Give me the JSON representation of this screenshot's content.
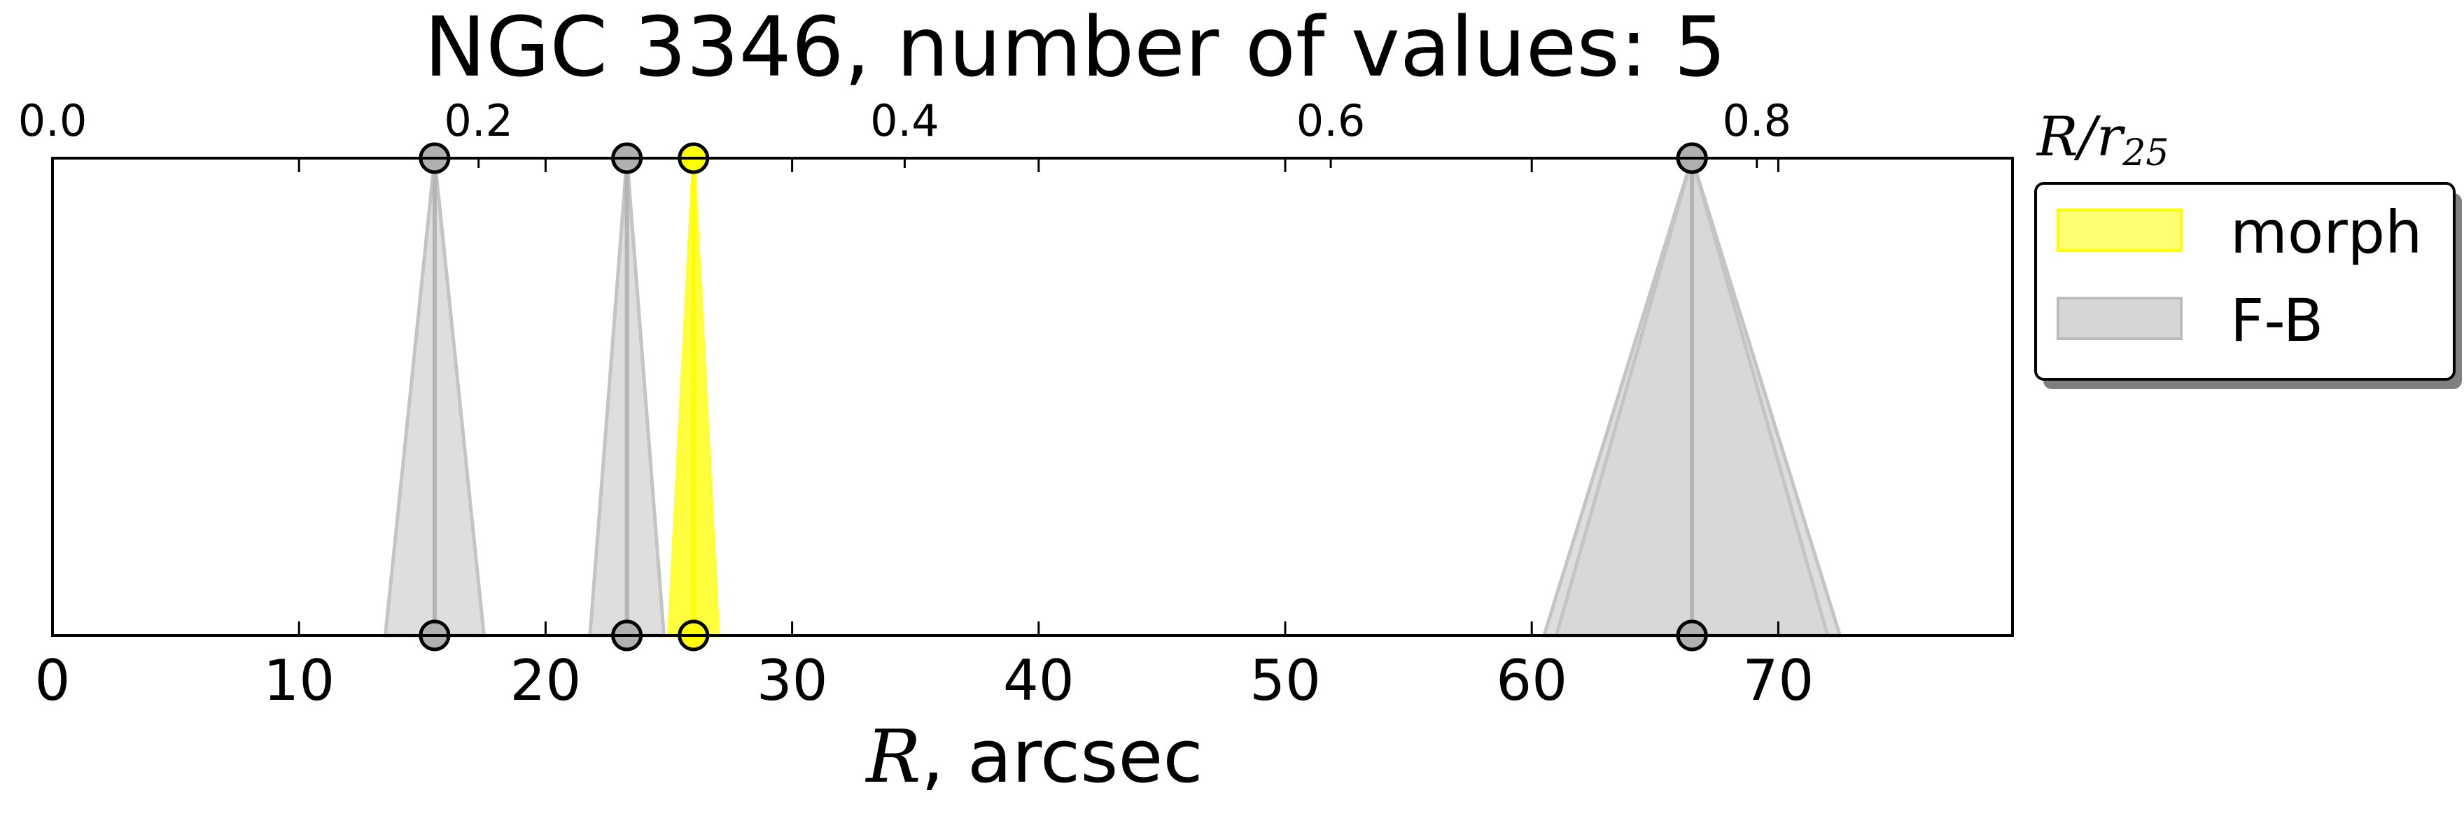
{
  "chart_data": {
    "type": "area",
    "title": "NGC 3346, number of values: 5",
    "xlabel": "R, arcsec",
    "xlabel_var": "R",
    "xlabel_unit": ", arcsec",
    "x2label_main": "R/r",
    "x2label_sub": "25",
    "xlim": [
      0,
      79.5
    ],
    "xticks": [
      0,
      10,
      20,
      30,
      40,
      50,
      60,
      70
    ],
    "x2lim": [
      0.0,
      0.92
    ],
    "x2ticks": [
      "0.0",
      "0.2",
      "0.4",
      "0.6",
      "0.8"
    ],
    "grid": false,
    "legend_position": "right-outside-top",
    "series": [
      {
        "name": "morph",
        "color": "#ffff00",
        "values": [
          {
            "center": 26.0,
            "low": 25.0,
            "high": 27.0
          }
        ]
      },
      {
        "name": "F-B",
        "color": "#c8c8c8",
        "values": [
          {
            "center": 15.5,
            "low": 13.5,
            "high": 17.5
          },
          {
            "center": 23.3,
            "low": 21.8,
            "high": 24.8
          },
          {
            "center": 66.5,
            "low": 60.5,
            "high": 72.5
          },
          {
            "center": 66.5,
            "low": 61.0,
            "high": 72.0
          }
        ]
      }
    ]
  }
}
